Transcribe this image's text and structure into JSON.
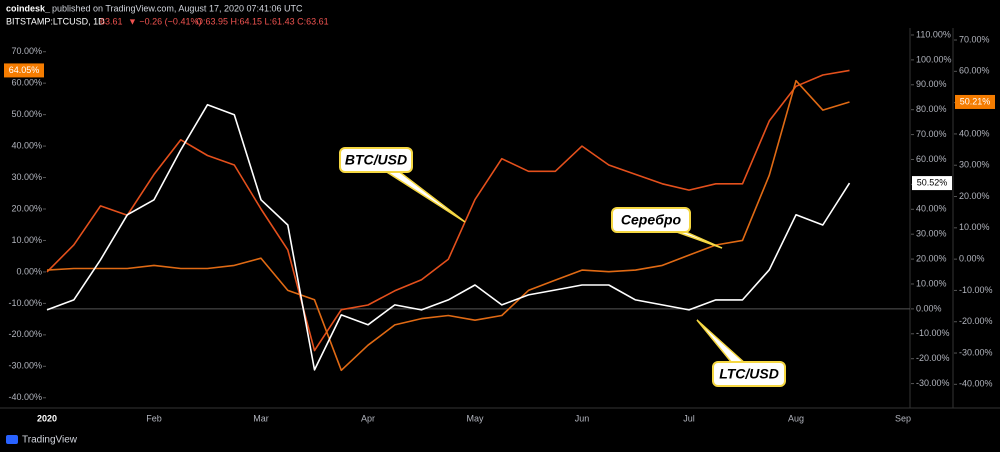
{
  "chart_data": {
    "type": "line",
    "header": {
      "author": "coindesk_",
      "published": "published on TradingView.com, August 17, 2020 07:41:06 UTC",
      "symbol": "BITSTAMP:LTCUSD, 1D",
      "price": "63.61",
      "change": "▼ −0.26 (−0.41%)",
      "ohlc": "O:63.95 H:64.15 L:61.43 C:63.61"
    },
    "footer": "TradingView",
    "categories": [
      "2020",
      null,
      null,
      null,
      "Feb",
      null,
      null,
      null,
      "Mar",
      null,
      null,
      null,
      "Apr",
      null,
      null,
      null,
      "May",
      null,
      null,
      null,
      "Jun",
      null,
      null,
      null,
      "Jul",
      null,
      null,
      null,
      "Aug",
      null,
      null,
      null,
      "Sep"
    ],
    "series": [
      {
        "name": "BTC/USD",
        "color": "#e4501c",
        "axis": "y",
        "values": [
          0,
          8.6,
          21,
          18,
          31,
          42,
          37,
          34,
          20,
          7,
          -25,
          -12,
          -10.5,
          -6,
          -2.5,
          4,
          23,
          36,
          32,
          32,
          40,
          34,
          31,
          28,
          26,
          28,
          28,
          48,
          59,
          62.6,
          64.05,
          null,
          null
        ],
        "last_label": {
          "value": 64.05,
          "label": "64.05%"
        }
      },
      {
        "name": "Серебро",
        "color": "#e06a14",
        "axis": "y3",
        "values": [
          -3.5,
          -3,
          -3,
          -3,
          -2,
          -3,
          -3,
          -2,
          0.3,
          -10,
          -13,
          -35.5,
          -27.5,
          -21,
          -19,
          -18,
          -19.5,
          -18,
          -10,
          -6.7,
          -3.5,
          -4,
          -3.5,
          -2,
          1.3,
          4.5,
          6,
          26.8,
          57,
          47.6,
          50.21,
          null,
          null
        ],
        "last_label": {
          "value": 50.21,
          "label": "50.21%"
        }
      },
      {
        "name": "LTC/USD",
        "color": "#ffffff",
        "axis": "y2",
        "values": [
          -0.4,
          3.6,
          19.7,
          37.8,
          43.8,
          63.9,
          82,
          78,
          43.8,
          33.7,
          -24.5,
          -2.4,
          -6.4,
          1.6,
          -0.4,
          3.6,
          9.6,
          1.6,
          5.6,
          7.6,
          9.6,
          9.6,
          3.6,
          1.6,
          -0.4,
          3.6,
          3.6,
          15.7,
          37.8,
          33.7,
          50.52,
          null,
          null
        ],
        "last_label": {
          "value": 50.52,
          "label": "50.52%"
        }
      }
    ],
    "ylim": [
      -42.3,
      76.9
    ],
    "yticks": [
      {
        "value": 70,
        "label": "70.00%"
      },
      {
        "value": 60,
        "label": "60.00%"
      },
      {
        "value": 50,
        "label": "50.00%"
      },
      {
        "value": 40,
        "label": "40.00%"
      },
      {
        "value": 30,
        "label": "30.00%"
      },
      {
        "value": 20,
        "label": "20.00%"
      },
      {
        "value": 10,
        "label": "10.00%"
      },
      {
        "value": 0,
        "label": "0.00%"
      },
      {
        "value": -10,
        "label": "-10.00%"
      },
      {
        "value": -20,
        "label": "-20.00%"
      },
      {
        "value": -30,
        "label": "-30.00%"
      },
      {
        "value": -40,
        "label": "-40.00%"
      }
    ],
    "y2lim": [
      -38.6,
      112
    ],
    "y2ticks": [
      {
        "value": 110,
        "label": "110.00%"
      },
      {
        "value": 100,
        "label": "100.00%"
      },
      {
        "value": 90,
        "label": "90.00%"
      },
      {
        "value": 80,
        "label": "80.00%"
      },
      {
        "value": 70,
        "label": "70.00%"
      },
      {
        "value": 60,
        "label": "60.00%"
      },
      {
        "value": 50,
        "label": "50.00%"
      },
      {
        "value": 40,
        "label": "40.00%"
      },
      {
        "value": 30,
        "label": "30.00%"
      },
      {
        "value": 20,
        "label": "20.00%"
      },
      {
        "value": 10,
        "label": "10.00%"
      },
      {
        "value": 0,
        "label": "0.00%"
      },
      {
        "value": -10,
        "label": "-10.00%"
      },
      {
        "value": -20,
        "label": "-20.00%"
      },
      {
        "value": -30,
        "label": "-30.00%"
      }
    ],
    "y3lim": [
      -46.6,
      73.2
    ],
    "y3ticks": [
      {
        "value": 70,
        "label": "70.00%"
      },
      {
        "value": 60,
        "label": "60.00%"
      },
      {
        "value": 50,
        "label": "50.00%"
      },
      {
        "value": 40,
        "label": "40.00%"
      },
      {
        "value": 30,
        "label": "30.00%"
      },
      {
        "value": 20,
        "label": "20.00%"
      },
      {
        "value": 10,
        "label": "10.00%"
      },
      {
        "value": 0,
        "label": "0.00%"
      },
      {
        "value": -10,
        "label": "-10.00%"
      },
      {
        "value": -20,
        "label": "-20.00%"
      },
      {
        "value": -30,
        "label": "-30.00%"
      },
      {
        "value": -40,
        "label": "-40.00%"
      }
    ],
    "baseline_axis": "y2",
    "grid": false
  }
}
